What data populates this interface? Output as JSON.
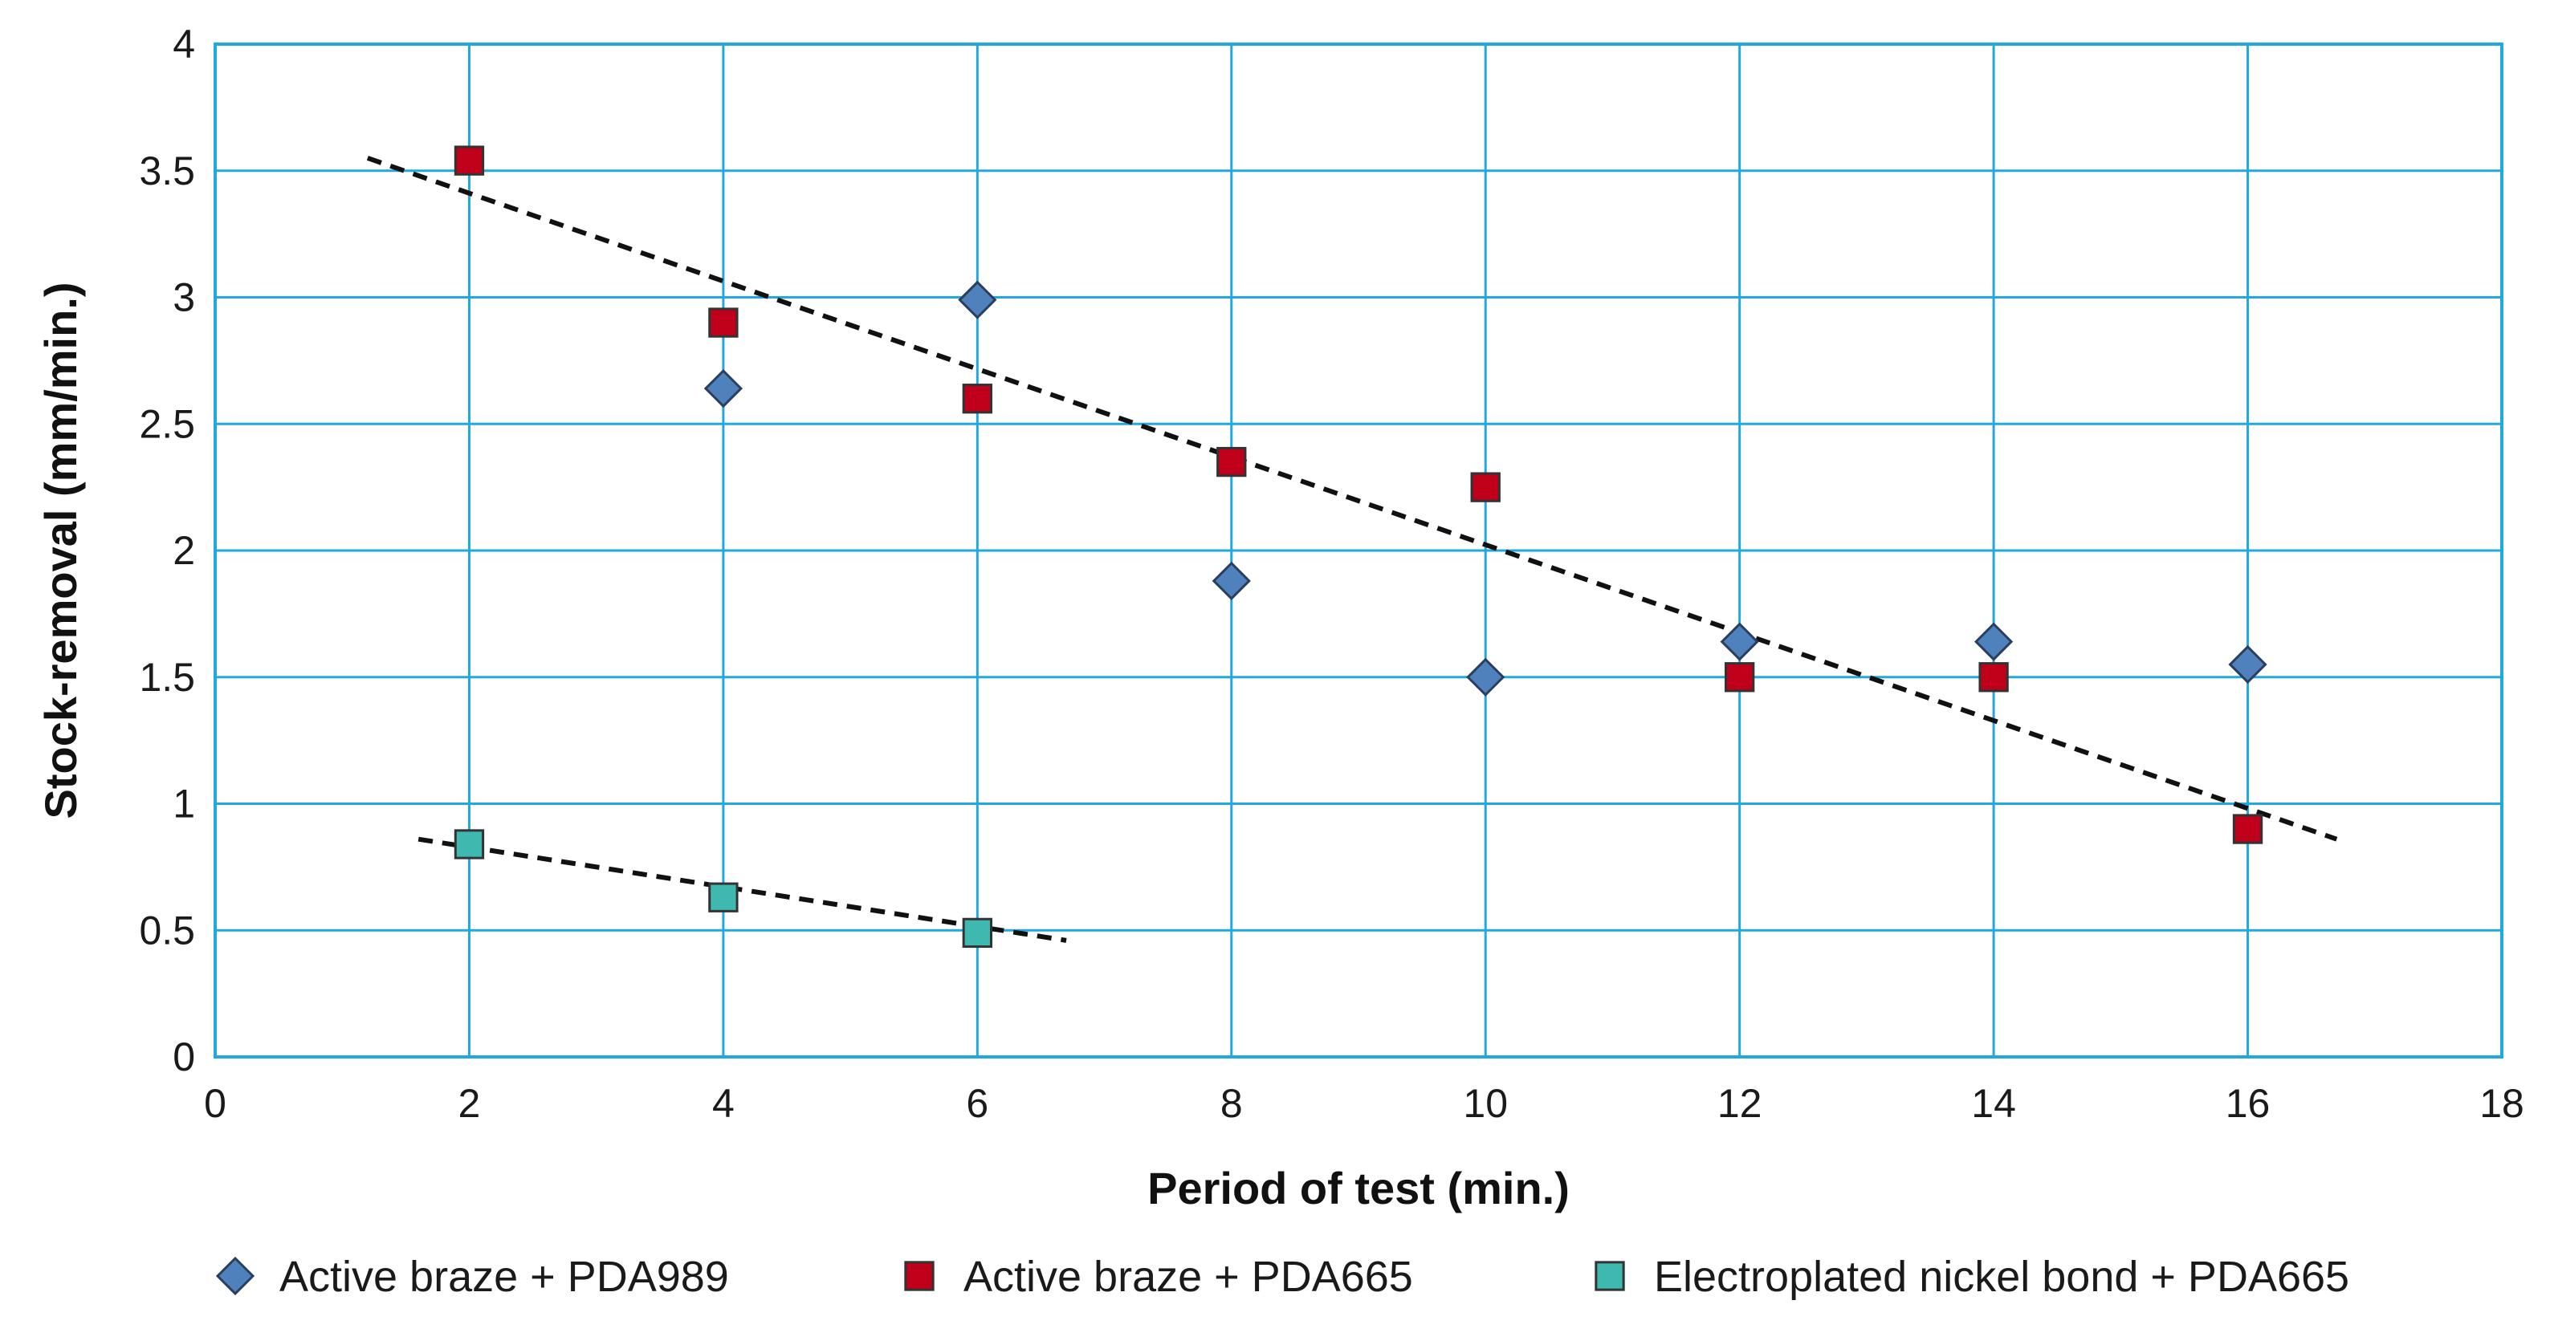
{
  "chart_data": {
    "type": "scatter",
    "title": "",
    "xlabel": "Period of test (min.)",
    "ylabel": "Stock-removal (mm/min.)",
    "xlim": [
      0,
      18
    ],
    "ylim": [
      0,
      4
    ],
    "xticks": [
      0,
      2,
      4,
      6,
      8,
      10,
      12,
      14,
      16,
      18
    ],
    "yticks": [
      0,
      0.5,
      1,
      1.5,
      2,
      2.5,
      3,
      3.5,
      4
    ],
    "grid": true,
    "legend_position": "bottom",
    "series": [
      {
        "name": "Active braze + PDA989",
        "marker": "diamond",
        "color": "#4f81bd",
        "x": [
          4,
          6,
          8,
          10,
          12,
          14,
          16
        ],
        "y": [
          2.64,
          2.99,
          1.88,
          1.5,
          1.64,
          1.64,
          1.55
        ]
      },
      {
        "name": "Active braze + PDA665",
        "marker": "square",
        "color": "#c0001a",
        "x": [
          2,
          4,
          6,
          8,
          10,
          12,
          14,
          16
        ],
        "y": [
          3.54,
          2.9,
          2.6,
          2.35,
          2.25,
          1.5,
          1.5,
          0.9
        ]
      },
      {
        "name": "Electroplated nickel bond + PDA665",
        "marker": "square",
        "color": "#3fb8b0",
        "x": [
          2,
          4,
          6
        ],
        "y": [
          0.84,
          0.63,
          0.49
        ]
      }
    ],
    "trendlines": [
      {
        "name": "trend-active-braze",
        "x": [
          1.2,
          16.7
        ],
        "y": [
          3.55,
          0.86
        ]
      },
      {
        "name": "trend-electroplated",
        "x": [
          1.6,
          6.7
        ],
        "y": [
          0.86,
          0.46
        ]
      }
    ]
  }
}
